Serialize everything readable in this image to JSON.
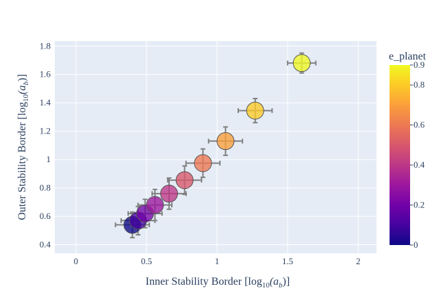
{
  "chart_data": {
    "type": "scatter",
    "xlabel": "Inner Stability Border [log",
    "ylabel": "Outer Stability Border [log",
    "label_sub": "10",
    "label_arg": "(a",
    "label_arg_sub": "b",
    "label_close": ")]",
    "xlim": [
      -0.15,
      2.13
    ],
    "ylim": [
      0.34,
      1.835
    ],
    "xticks": [
      0,
      0.5,
      1,
      1.5,
      2
    ],
    "xtick_labels": [
      "0",
      "0.5",
      "1",
      "1.5",
      "2"
    ],
    "yticks": [
      0.4,
      0.6,
      0.8,
      1.0,
      1.2,
      1.4,
      1.6,
      1.8
    ],
    "ytick_labels": [
      "0.4",
      "0.6",
      "0.8",
      "1",
      "1.2",
      "1.4",
      "1.6",
      "1.8"
    ],
    "grid": true,
    "colorbar": {
      "title": "e_planet",
      "range": [
        0,
        0.9
      ],
      "ticks": [
        0,
        0.2,
        0.4,
        0.6,
        0.8,
        0.9
      ],
      "tick_labels": [
        "0",
        "0.2",
        "0.4",
        "0.6",
        "0.8",
        "0.9"
      ],
      "colorscale": [
        "#0d0887",
        "#46039f",
        "#7201a8",
        "#9c179e",
        "#bd3786",
        "#d8576b",
        "#ed7953",
        "#fb9f3a",
        "#fdca26",
        "#f0f921"
      ]
    },
    "points": [
      {
        "x": 0.4,
        "y": 0.54,
        "x_err": 0.12,
        "y_err": 0.09,
        "e": 0.0
      },
      {
        "x": 0.44,
        "y": 0.57,
        "x_err": 0.12,
        "y_err": 0.1,
        "e": 0.1
      },
      {
        "x": 0.49,
        "y": 0.62,
        "x_err": 0.12,
        "y_err": 0.1,
        "e": 0.2
      },
      {
        "x": 0.56,
        "y": 0.68,
        "x_err": 0.12,
        "y_err": 0.11,
        "e": 0.3
      },
      {
        "x": 0.66,
        "y": 0.76,
        "x_err": 0.12,
        "y_err": 0.11,
        "e": 0.4
      },
      {
        "x": 0.77,
        "y": 0.855,
        "x_err": 0.12,
        "y_err": 0.1,
        "e": 0.5
      },
      {
        "x": 0.9,
        "y": 0.975,
        "x_err": 0.12,
        "y_err": 0.1,
        "e": 0.6
      },
      {
        "x": 1.06,
        "y": 1.13,
        "x_err": 0.12,
        "y_err": 0.1,
        "e": 0.7
      },
      {
        "x": 1.27,
        "y": 1.345,
        "x_err": 0.12,
        "y_err": 0.085,
        "e": 0.8
      },
      {
        "x": 1.6,
        "y": 1.68,
        "x_err": 0.1,
        "y_err": 0.07,
        "e": 0.9
      }
    ]
  }
}
